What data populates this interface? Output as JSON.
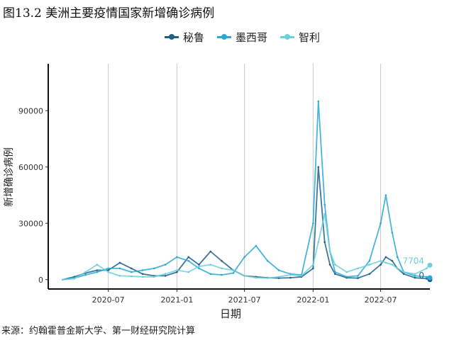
{
  "figure": {
    "title": "图13.2 美洲主要疫情国家新增确诊病例",
    "source": "来源：约翰霍普金斯大学、第一财经研究院计算"
  },
  "chart_data": {
    "type": "line",
    "title": "图13.2 美洲主要疫情国家新增确诊病例",
    "xlabel": "日期",
    "ylabel": "新增确诊病例",
    "x_ticks": [
      "2020-07",
      "2021-01",
      "2021-07",
      "2022-01",
      "2022-07"
    ],
    "y_ticks": [
      0,
      30000,
      60000,
      90000
    ],
    "xlim": [
      "2020-01-22",
      "2022-11-10"
    ],
    "ylim": [
      -5000,
      115000
    ],
    "grid": "vertical major gridlines",
    "legend_position": "top",
    "x": [
      "2020-03-01",
      "2020-04-01",
      "2020-05-01",
      "2020-06-01",
      "2020-07-01",
      "2020-08-01",
      "2020-09-01",
      "2020-10-01",
      "2020-11-01",
      "2020-12-01",
      "2021-01-01",
      "2021-02-01",
      "2021-03-01",
      "2021-04-01",
      "2021-05-01",
      "2021-06-01",
      "2021-07-01",
      "2021-08-01",
      "2021-09-01",
      "2021-10-01",
      "2021-11-01",
      "2021-12-01",
      "2022-01-01",
      "2022-01-15",
      "2022-02-01",
      "2022-02-15",
      "2022-03-01",
      "2022-04-01",
      "2022-05-01",
      "2022-06-01",
      "2022-07-01",
      "2022-07-15",
      "2022-08-01",
      "2022-08-15",
      "2022-09-01",
      "2022-10-01",
      "2022-11-01",
      "2022-11-10"
    ],
    "series": [
      {
        "name": "秘鲁",
        "color": "#1f5f87",
        "end_label": "0",
        "values": [
          0,
          1500,
          3500,
          5000,
          5000,
          9000,
          6000,
          3000,
          2000,
          2000,
          4000,
          12000,
          8000,
          15000,
          10000,
          5000,
          2000,
          1500,
          1000,
          800,
          1000,
          1500,
          6000,
          60000,
          20000,
          8000,
          3000,
          1000,
          800,
          3000,
          8000,
          12000,
          10000,
          6000,
          3000,
          1000,
          500,
          0
        ]
      },
      {
        "name": "墨西哥",
        "color": "#2aa8d6",
        "end_label": "",
        "values": [
          0,
          800,
          2500,
          4000,
          6000,
          6000,
          4000,
          5000,
          6000,
          8000,
          12000,
          10000,
          6000,
          3000,
          2500,
          3500,
          12000,
          18000,
          10000,
          5000,
          3000,
          2500,
          30000,
          95000,
          40000,
          15000,
          4000,
          1500,
          2000,
          10000,
          30000,
          45000,
          25000,
          12000,
          4000,
          2000,
          1500,
          1000
        ]
      },
      {
        "name": "智利",
        "color": "#6ccfd9",
        "end_label": "7704",
        "values": [
          0,
          500,
          4000,
          8000,
          4000,
          2000,
          1800,
          1500,
          1500,
          3000,
          5000,
          4000,
          7000,
          8000,
          6000,
          5000,
          2000,
          1000,
          800,
          1500,
          2500,
          2000,
          8000,
          20000,
          35000,
          15000,
          8000,
          4000,
          6000,
          8000,
          10000,
          9000,
          8000,
          6000,
          4000,
          3000,
          6000,
          7704
        ]
      }
    ]
  }
}
